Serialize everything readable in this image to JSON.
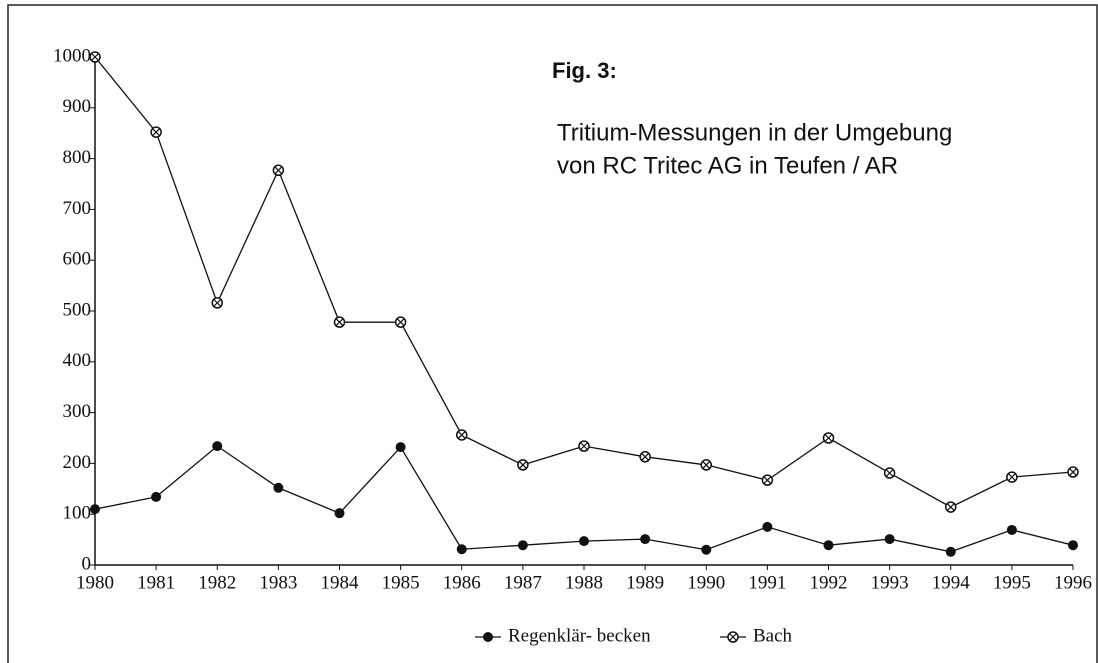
{
  "chart_data": {
    "type": "line",
    "title": "Fig. 3:",
    "subtitle": [
      "Tritium-Messungen in der Umgebung",
      "von RC Tritec AG in Teufen / AR"
    ],
    "x": [
      1980,
      1981,
      1982,
      1983,
      1984,
      1985,
      1986,
      1987,
      1988,
      1989,
      1990,
      1991,
      1992,
      1993,
      1994,
      1995,
      1996
    ],
    "series": [
      {
        "name": "Regenklär- becken",
        "color": "#111111",
        "marker": "circle",
        "values": [
          110,
          134,
          234,
          152,
          102,
          232,
          31,
          39,
          47,
          51,
          30,
          75,
          39,
          51,
          26,
          69,
          39
        ]
      },
      {
        "name": "Bach",
        "color": "#111111",
        "marker": "crossed-circle",
        "values": [
          1000,
          852,
          516,
          777,
          478,
          478,
          256,
          197,
          234,
          213,
          197,
          167,
          250,
          181,
          114,
          173,
          183
        ]
      }
    ],
    "xlim": [
      1980,
      1996
    ],
    "xticks": [
      1980,
      1981,
      1982,
      1983,
      1984,
      1985,
      1986,
      1987,
      1988,
      1989,
      1990,
      1991,
      1992,
      1993,
      1994,
      1995,
      1996
    ],
    "ylim": [
      0,
      1000
    ],
    "yticks": [
      0,
      100,
      200,
      300,
      400,
      500,
      600,
      700,
      800,
      900,
      1000
    ],
    "grid": false,
    "legend": "bottom"
  }
}
